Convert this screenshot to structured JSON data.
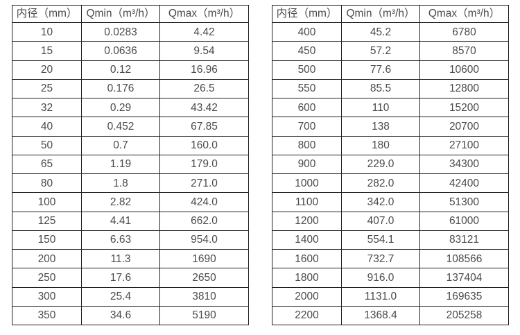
{
  "columns": [
    "内径（mm）",
    "Qmin（m³/h）",
    "Qmax（m³/h）"
  ],
  "tables": {
    "left": {
      "rows": [
        [
          "10",
          "0.0283",
          "4.42"
        ],
        [
          "15",
          "0.0636",
          "9.54"
        ],
        [
          "20",
          "0.12",
          "16.96"
        ],
        [
          "25",
          "0.176",
          "26.5"
        ],
        [
          "32",
          "0.29",
          "43.42"
        ],
        [
          "40",
          "0.452",
          "67.85"
        ],
        [
          "50",
          "0.7",
          "160.0"
        ],
        [
          "65",
          "1.19",
          "179.0"
        ],
        [
          "80",
          "1.8",
          "271.0"
        ],
        [
          "100",
          "2.82",
          "424.0"
        ],
        [
          "125",
          "4.41",
          "662.0"
        ],
        [
          "150",
          "6.63",
          "954.0"
        ],
        [
          "200",
          "11.3",
          "1690"
        ],
        [
          "250",
          "17.6",
          "2650"
        ],
        [
          "300",
          "25.4",
          "3810"
        ],
        [
          "350",
          "34.6",
          "5190"
        ]
      ]
    },
    "right": {
      "rows": [
        [
          "400",
          "45.2",
          "6780"
        ],
        [
          "450",
          "57.2",
          "8570"
        ],
        [
          "500",
          "77.6",
          "10600"
        ],
        [
          "550",
          "85.5",
          "12800"
        ],
        [
          "600",
          "110",
          "15200"
        ],
        [
          "700",
          "138",
          "20700"
        ],
        [
          "800",
          "180",
          "27100"
        ],
        [
          "900",
          "229.0",
          "34300"
        ],
        [
          "1000",
          "282.0",
          "42400"
        ],
        [
          "1100",
          "342.0",
          "51300"
        ],
        [
          "1200",
          "407.0",
          "61000"
        ],
        [
          "1400",
          "554.1",
          "83121"
        ],
        [
          "1600",
          "732.7",
          "108566"
        ],
        [
          "1800",
          "916.0",
          "137404"
        ],
        [
          "2000",
          "1131.0",
          "169635"
        ],
        [
          "2200",
          "1368.4",
          "205258"
        ]
      ]
    }
  },
  "colors": {
    "background": "#ffffff",
    "text": "#4a4a4a",
    "border": "#1f1f1f"
  }
}
